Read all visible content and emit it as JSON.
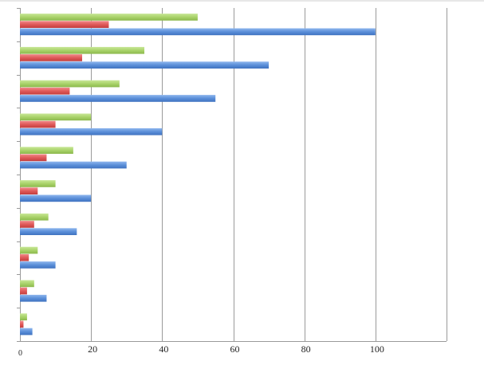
{
  "chart_data": {
    "type": "bar",
    "orientation": "horizontal",
    "xlim": [
      0,
      120
    ],
    "x_ticks": [
      0,
      20,
      40,
      60,
      80,
      100
    ],
    "x_tick_labels": [
      "0",
      "20",
      "40",
      "60",
      "80",
      "100"
    ],
    "grid": "vertical",
    "legend": "none",
    "title": "",
    "xlabel": "",
    "ylabel": "",
    "categories": [
      "",
      "",
      "",
      "",
      "",
      "",
      "",
      "",
      "",
      ""
    ],
    "series": [
      {
        "color": "#5b8fd9",
        "values": [
          3.5,
          7.5,
          10,
          16,
          20,
          30,
          40,
          55,
          70,
          100
        ]
      },
      {
        "color": "#e05a5a",
        "values": [
          1,
          2,
          2.5,
          4,
          5,
          7.5,
          10,
          14,
          17.5,
          25
        ]
      },
      {
        "color": "#a9d36a",
        "values": [
          2,
          4,
          5,
          8,
          10,
          15,
          20,
          28,
          35,
          50
        ]
      }
    ]
  }
}
